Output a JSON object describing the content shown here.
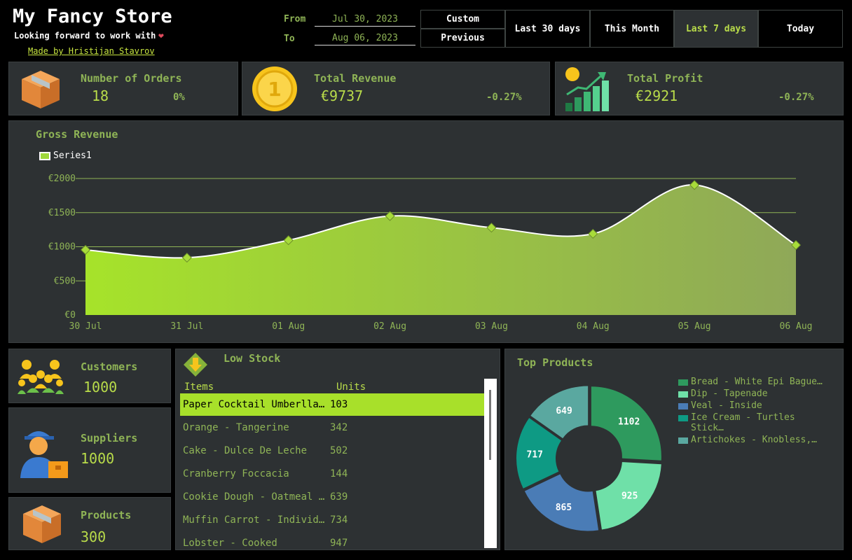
{
  "header": {
    "title": "My Fancy Store",
    "subtitle": "Looking forward to work with",
    "credit": "Made by Hristijan Stavrov"
  },
  "date_range": {
    "from_label": "From",
    "from_value": "Jul 30, 2023",
    "to_label": "To",
    "to_value": "Aug 06, 2023"
  },
  "filters": {
    "custom": "Custom",
    "previous": "Previous",
    "last30": "Last 30 days",
    "this_month": "This Month",
    "last7": "Last 7 days",
    "today": "Today",
    "active": "last7"
  },
  "kpis": {
    "orders": {
      "label": "Number of Orders",
      "value": "18",
      "change": "0%"
    },
    "revenue": {
      "label": "Total Revenue",
      "value": "€9737",
      "change": "-0.27%"
    },
    "profit": {
      "label": "Total Profit",
      "value": "€2921",
      "change": "-0.27%"
    }
  },
  "side_stats": {
    "customers": {
      "label": "Customers",
      "value": "1000"
    },
    "suppliers": {
      "label": "Suppliers",
      "value": "1000"
    },
    "products": {
      "label": "Products",
      "value": "300"
    }
  },
  "chart_data": [
    {
      "type": "area",
      "title": "Gross Revenue",
      "legend": [
        "Series1"
      ],
      "categories": [
        "30 Jul",
        "31 Jul",
        "01 Aug",
        "02 Aug",
        "03 Aug",
        "04 Aug",
        "05 Aug",
        "06 Aug"
      ],
      "series": [
        {
          "name": "Series1",
          "values": [
            955,
            840,
            1095,
            1450,
            1280,
            1190,
            1905,
            1025
          ]
        }
      ],
      "ylim": [
        0,
        2000
      ],
      "yticks": [
        "€0",
        "€500",
        "€1000",
        "€1500",
        "€2000"
      ],
      "grid": true,
      "legend_position": "top-left",
      "color": "#a6dc2c"
    },
    {
      "type": "pie",
      "title": "Top Products",
      "labels": [
        "Bread - White Epi Bague…",
        "Dip - Tapenade",
        "Veal - Inside",
        "Ice Cream - Turtles Stick…",
        "Artichokes - Knobless,…"
      ],
      "values": [
        1102,
        925,
        865,
        717,
        649
      ],
      "colors": [
        "#2e9a5e",
        "#6fe0a8",
        "#4a7cb6",
        "#0e9a84",
        "#5aa8a0"
      ],
      "legend_position": "right"
    }
  ],
  "low_stock": {
    "title": "Low Stock",
    "col_items": "Items",
    "col_units": "Units",
    "rows": [
      {
        "name": "Paper Cocktail Umberlla …",
        "units": "103"
      },
      {
        "name": "Orange - Tangerine",
        "units": "342"
      },
      {
        "name": "Cake - Dulce De Leche",
        "units": "502"
      },
      {
        "name": "Cranberry Foccacia",
        "units": "144"
      },
      {
        "name": "Cookie Dough - Oatmeal …",
        "units": "639"
      },
      {
        "name": "Muffin Carrot - Individual",
        "units": "734"
      },
      {
        "name": "Lobster - Cooked",
        "units": "947"
      }
    ]
  }
}
